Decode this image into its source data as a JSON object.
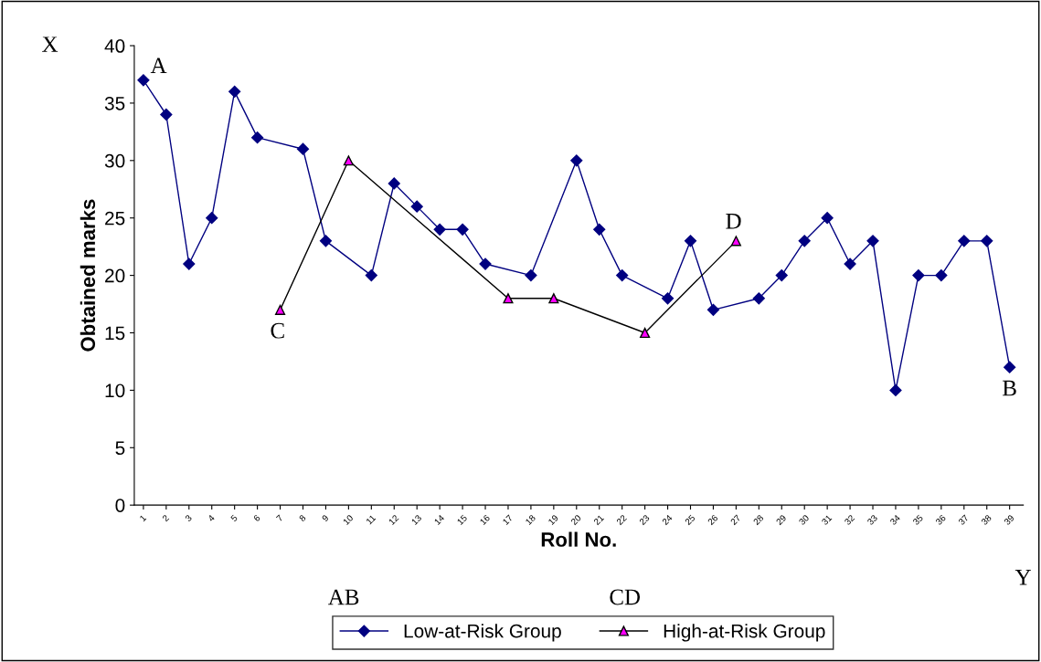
{
  "chart_data": {
    "type": "line",
    "xlabel": "Roll No.",
    "ylabel": "Obtained marks",
    "categories": [
      "1",
      "2",
      "3",
      "4",
      "5",
      "6",
      "7",
      "8",
      "9",
      "10",
      "11",
      "12",
      "13",
      "14",
      "15",
      "16",
      "17",
      "18",
      "19",
      "20",
      "21",
      "22",
      "23",
      "24",
      "25",
      "26",
      "27",
      "28",
      "29",
      "30",
      "31",
      "32",
      "33",
      "34",
      "35",
      "36",
      "37",
      "38",
      "39"
    ],
    "series": [
      {
        "name": "Low-at-Risk Group",
        "color": "#000080",
        "marker": "diamond",
        "values": [
          37,
          34,
          21,
          25,
          36,
          32,
          null,
          31,
          23,
          null,
          20,
          28,
          26,
          24,
          24,
          21,
          null,
          20,
          null,
          30,
          24,
          20,
          null,
          18,
          23,
          17,
          null,
          18,
          20,
          23,
          25,
          21,
          23,
          10,
          20,
          20,
          23,
          23,
          12
        ]
      },
      {
        "name": "High-at-Risk Group",
        "color": "#ff00ff",
        "marker": "triangle",
        "values": [
          null,
          null,
          null,
          null,
          null,
          null,
          17,
          null,
          null,
          30,
          null,
          null,
          null,
          null,
          null,
          null,
          18,
          null,
          18,
          null,
          null,
          null,
          15,
          null,
          null,
          null,
          23,
          null,
          null,
          null,
          null,
          null,
          null,
          null,
          null,
          null,
          null,
          null,
          null
        ]
      }
    ],
    "ylim": [
      0,
      40
    ],
    "yticks": [
      0,
      5,
      10,
      15,
      20,
      25,
      30,
      35,
      40
    ],
    "grid": false,
    "legend": "bottom",
    "annotations": [
      "X",
      {
        "text": "A",
        "x": "1",
        "y": 37
      },
      {
        "text": "B",
        "x": "39",
        "y": 12
      },
      {
        "text": "C",
        "x": "7",
        "y": 17
      },
      {
        "text": "D",
        "x": "27",
        "y": 23
      },
      "Y",
      "AB",
      "CD"
    ]
  }
}
